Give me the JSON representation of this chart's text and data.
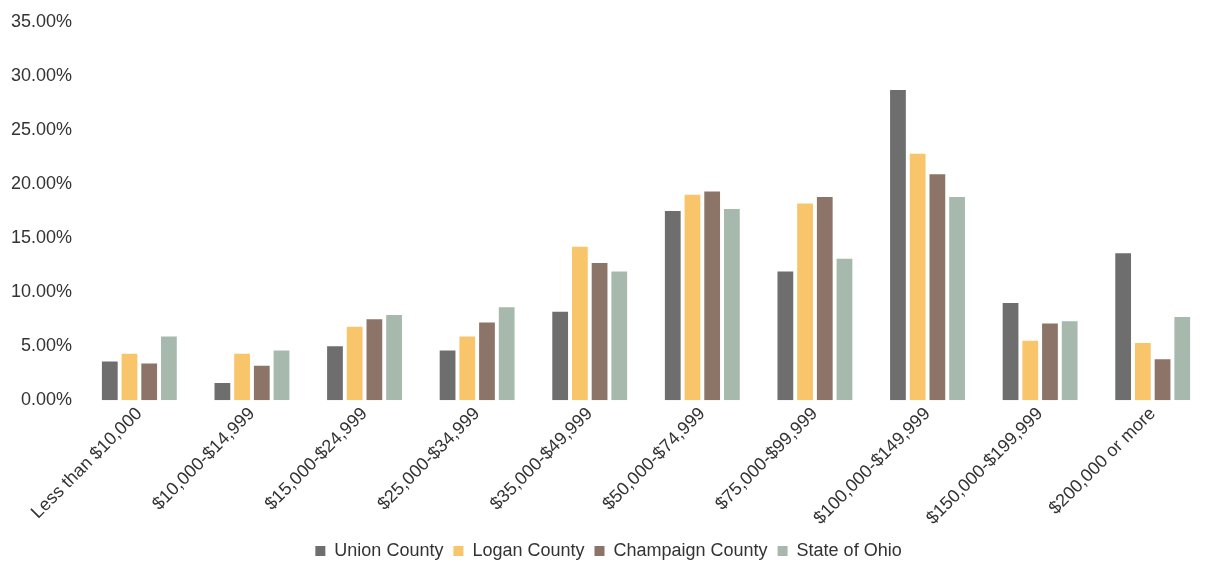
{
  "chart_data": {
    "type": "bar",
    "categories": [
      "Less than $10,000",
      "$10,000-$14,999",
      "$15,000-$24,999",
      "$25,000-$34,999",
      "$35,000-$49,999",
      "$50,000-$74,999",
      "$75,000-$99,999",
      "$100,000-$149,999",
      "$150,000-$199,999",
      "$200,000 or more"
    ],
    "series": [
      {
        "name": "Union County",
        "color": "#6e6e6e",
        "values": [
          3.6,
          1.6,
          5.0,
          4.6,
          8.2,
          17.5,
          11.9,
          28.7,
          9.0,
          13.6
        ]
      },
      {
        "name": "Logan County",
        "color": "#f9c56a",
        "values": [
          4.3,
          4.3,
          6.8,
          5.9,
          14.2,
          19.0,
          18.2,
          22.8,
          5.5,
          5.3
        ]
      },
      {
        "name": "Champaign County",
        "color": "#8c7468",
        "values": [
          3.4,
          3.2,
          7.5,
          7.2,
          12.7,
          19.3,
          18.8,
          20.9,
          7.1,
          3.8
        ]
      },
      {
        "name": "State of Ohio",
        "color": "#a7b9ad",
        "values": [
          5.9,
          4.6,
          7.9,
          8.6,
          11.9,
          17.7,
          13.1,
          18.8,
          7.3,
          7.7
        ]
      }
    ],
    "ylim": [
      0,
      35
    ],
    "yticks": [
      {
        "value": 0,
        "label": "0.00%"
      },
      {
        "value": 5,
        "label": "5.00%"
      },
      {
        "value": 10,
        "label": "10.00%"
      },
      {
        "value": 15,
        "label": "15.00%"
      },
      {
        "value": 20,
        "label": "20.00%"
      },
      {
        "value": 25,
        "label": "25.00%"
      },
      {
        "value": 30,
        "label": "30.00%"
      },
      {
        "value": 35,
        "label": "35.00%"
      }
    ],
    "grid": false,
    "legend": "bottom"
  }
}
